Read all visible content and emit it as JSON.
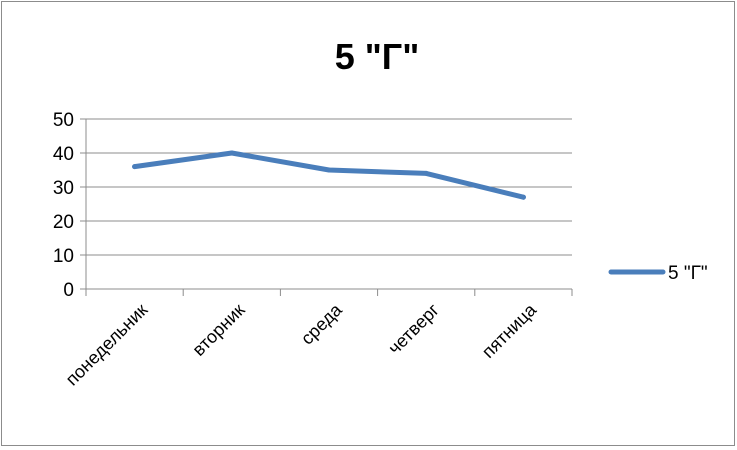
{
  "chart_data": {
    "type": "line",
    "title": "5 \"Г\"",
    "categories": [
      "понедельник",
      "вторник",
      "среда",
      "четверг",
      "пятница"
    ],
    "series": [
      {
        "name": "5 \"Г\"",
        "values": [
          36,
          40,
          35,
          34,
          27
        ],
        "color": "#4a7ebb"
      }
    ],
    "ylim": [
      0,
      50
    ],
    "yticks": [
      0,
      10,
      20,
      30,
      40,
      50
    ],
    "grid": true,
    "legend": "right"
  }
}
